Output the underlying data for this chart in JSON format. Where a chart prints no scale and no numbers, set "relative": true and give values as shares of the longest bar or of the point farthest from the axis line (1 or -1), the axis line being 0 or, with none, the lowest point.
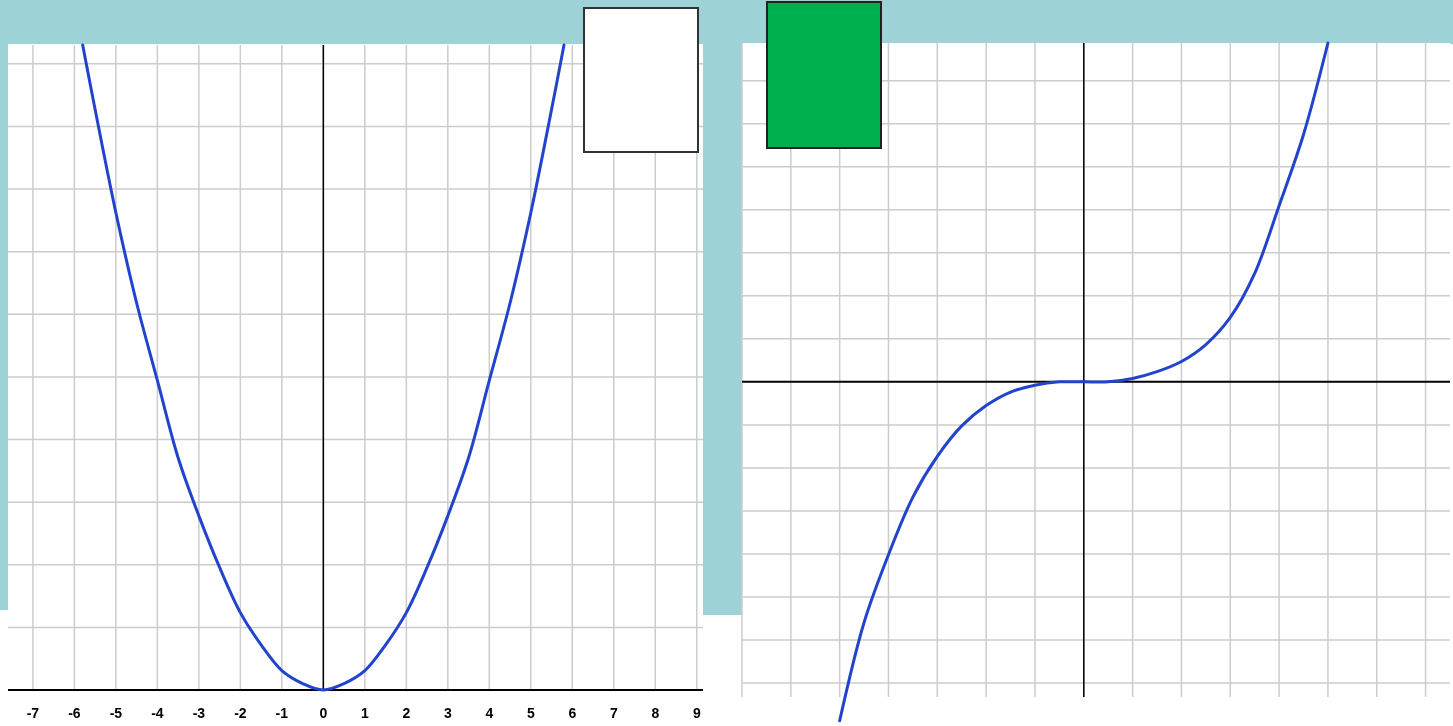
{
  "chart_data": [
    {
      "type": "line",
      "relative": true,
      "x": [
        -5.8,
        -5.5,
        -5,
        -4.5,
        -4,
        -3.5,
        -3,
        -2.5,
        -2,
        -1.5,
        -1,
        -0.5,
        0,
        0.5,
        1,
        1.5,
        2,
        2.5,
        3,
        3.5,
        4,
        4.5,
        5,
        5.5,
        5.8
      ],
      "series": [
        {
          "color": "#2244cc",
          "values": [
            1,
            0.9,
            0.74,
            0.6,
            0.48,
            0.36,
            0.27,
            0.19,
            0.12,
            0.07,
            0.03,
            0.01,
            0,
            0.01,
            0.03,
            0.07,
            0.12,
            0.19,
            0.27,
            0.36,
            0.48,
            0.6,
            0.74,
            0.9,
            1
          ]
        }
      ],
      "xlim": [
        -7.6,
        9.15
      ],
      "xticks": [
        -7,
        -6,
        -5,
        -4,
        -3,
        -2,
        -1,
        0,
        1,
        2,
        3,
        4,
        5,
        6,
        7,
        8,
        9
      ],
      "grid": true,
      "tick_labels": "x"
    },
    {
      "type": "line",
      "relative": true,
      "categories": [
        null,
        null,
        null,
        null,
        null,
        null,
        null,
        null,
        null,
        null,
        null,
        null,
        null,
        null,
        null,
        null,
        null,
        null,
        null,
        null,
        null,
        null,
        null,
        null,
        null,
        null,
        null,
        null,
        null,
        null
      ],
      "series": [
        {
          "color": "#2244cc",
          "values": [
            null,
            null,
            null,
            null,
            -1,
            -0.71,
            -0.51,
            -0.34,
            -0.22,
            -0.13,
            -0.07,
            -0.03,
            -0.01,
            0,
            0,
            0,
            0.01,
            0.03,
            0.06,
            0.11,
            0.19,
            0.32,
            0.52,
            0.73,
            1,
            null,
            null,
            null,
            null,
            null
          ]
        }
      ],
      "grid": true,
      "tick_labels": false
    }
  ]
}
